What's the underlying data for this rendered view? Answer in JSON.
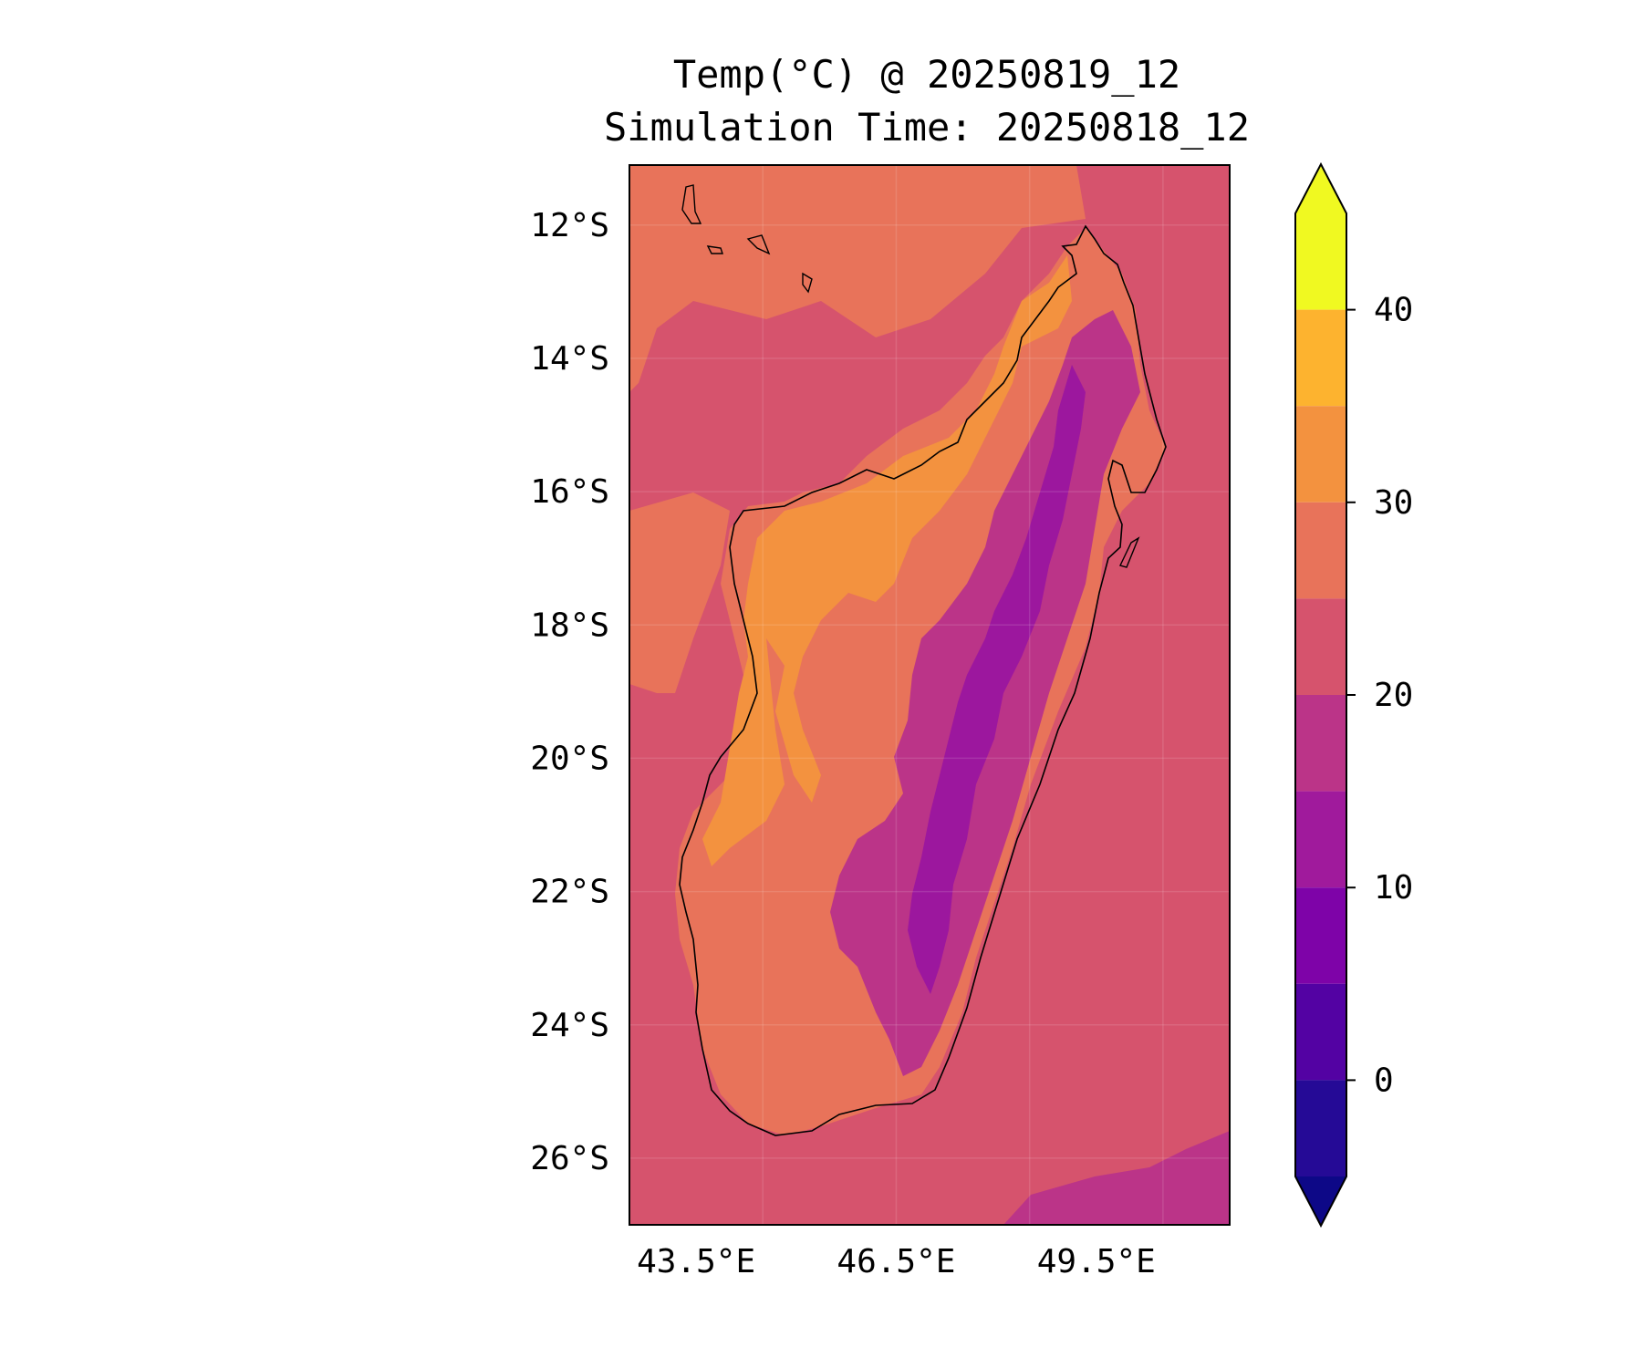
{
  "title": {
    "line1": "Temp(°C) @ 20250819_12",
    "line2": "Simulation Time: 20250818_12"
  },
  "map": {
    "lat_ticks": [
      "12°S",
      "14°S",
      "16°S",
      "18°S",
      "20°S",
      "22°S",
      "24°S",
      "26°S"
    ],
    "lon_ticks": [
      "43.5°E",
      "46.5°E",
      "49.5°E"
    ],
    "lat_values": [
      -12,
      -14,
      -16,
      -18,
      -20,
      -22,
      -24,
      -26
    ],
    "lon_values": [
      43.5,
      46.5,
      49.5
    ],
    "lat_range": [
      -11.1,
      -27.0
    ],
    "lon_range": [
      42.5,
      51.5
    ],
    "region_colors": {
      "ocean": "#d6536d",
      "coast_warm": "#e8735a",
      "hot": "#f3923f",
      "highland": "#bb3488",
      "cold": "#9c179e"
    }
  },
  "colorbar": {
    "ticks": [
      "40",
      "30",
      "20",
      "10",
      "0"
    ],
    "tick_values": [
      40,
      30,
      20,
      10,
      0
    ],
    "range": [
      -5,
      45
    ],
    "bands": [
      {
        "from": 40,
        "to": 45,
        "color": "#f0f921"
      },
      {
        "from": 35,
        "to": 40,
        "color": "#fdb32f"
      },
      {
        "from": 30,
        "to": 35,
        "color": "#f3923f"
      },
      {
        "from": 25,
        "to": 30,
        "color": "#e8735a"
      },
      {
        "from": 20,
        "to": 25,
        "color": "#d6536d"
      },
      {
        "from": 15,
        "to": 20,
        "color": "#bb3488"
      },
      {
        "from": 10,
        "to": 15,
        "color": "#a01a9c"
      },
      {
        "from": 5,
        "to": 10,
        "color": "#7e03a8"
      },
      {
        "from": 0,
        "to": 5,
        "color": "#5302a3"
      },
      {
        "from": -5,
        "to": 0,
        "color": "#250a96"
      }
    ],
    "extend_max_color": "#f0f921",
    "extend_min_color": "#0d0887"
  }
}
